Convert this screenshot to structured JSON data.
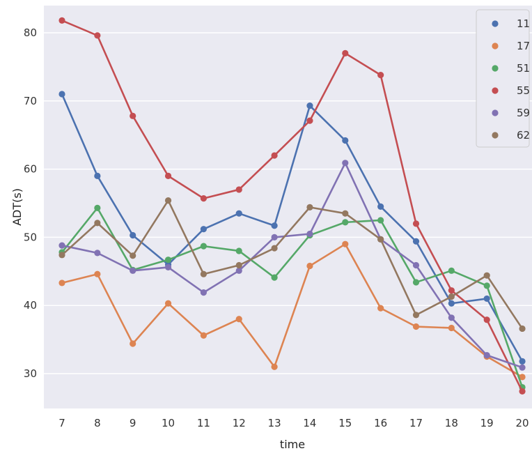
{
  "chart_data": {
    "type": "line",
    "xlabel": "time",
    "ylabel": "ADT(s)",
    "x": [
      7,
      8,
      9,
      10,
      11,
      12,
      13,
      14,
      15,
      16,
      17,
      18,
      19,
      20
    ],
    "ylim": [
      25,
      84
    ],
    "yticks": [
      30,
      40,
      50,
      60,
      70,
      80
    ],
    "grid": true,
    "legend_position": "top-right",
    "plot_background": "#eaeaf2",
    "series": [
      {
        "name": "11",
        "color": "#4c72b0",
        "values": [
          71,
          59,
          50.3,
          46,
          51.2,
          53.5,
          51.7,
          69.3,
          64.2,
          54.5,
          49.4,
          40.3,
          41,
          31.8
        ]
      },
      {
        "name": "17",
        "color": "#dd8452",
        "values": [
          43.3,
          44.6,
          34.4,
          40.3,
          35.6,
          38,
          31,
          45.8,
          49,
          39.6,
          36.9,
          36.7,
          32.5,
          29.5
        ]
      },
      {
        "name": "51",
        "color": "#55a868",
        "values": [
          47.8,
          54.3,
          45.2,
          46.7,
          48.7,
          48,
          44.1,
          50.3,
          52.2,
          52.5,
          43.4,
          45.1,
          42.9,
          28
        ]
      },
      {
        "name": "55",
        "color": "#c44e52",
        "values": [
          81.8,
          79.6,
          67.8,
          59,
          55.7,
          57,
          62,
          67.1,
          77,
          73.8,
          52,
          42.2,
          37.9,
          27.4
        ]
      },
      {
        "name": "59",
        "color": "#8172b3",
        "values": [
          48.8,
          47.7,
          45.1,
          45.6,
          41.9,
          45.1,
          50,
          50.5,
          60.9,
          49.7,
          45.9,
          38.2,
          32.7,
          30.9
        ]
      },
      {
        "name": "62",
        "color": "#937860",
        "values": [
          47.4,
          52.1,
          47.3,
          55.4,
          44.6,
          45.9,
          48.4,
          54.4,
          53.5,
          49.7,
          38.6,
          41.3,
          44.4,
          36.6
        ]
      }
    ]
  }
}
